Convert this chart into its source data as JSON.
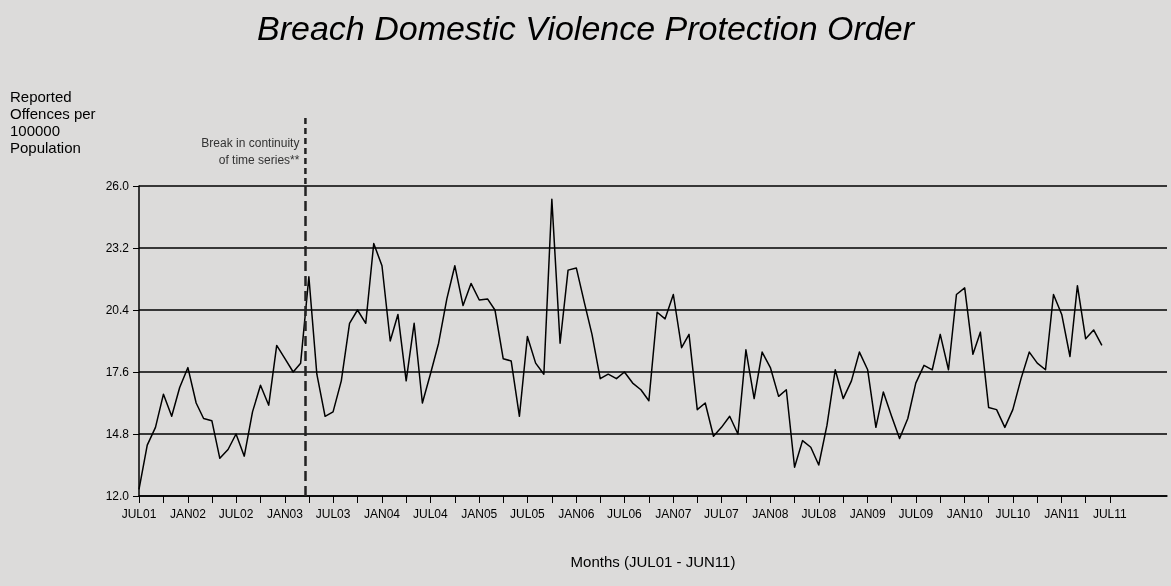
{
  "chart_data": {
    "type": "line",
    "title": "Breach Domestic Violence Protection Order",
    "xlabel": "Months (JUL01 - JUN11)",
    "ylabel": "Reported Offences per 100000 Population",
    "x": [
      "2001-07",
      "2001-08",
      "2001-09",
      "2001-10",
      "2001-11",
      "2001-12",
      "2002-01",
      "2002-02",
      "2002-03",
      "2002-04",
      "2002-05",
      "2002-06",
      "2002-07",
      "2002-08",
      "2002-09",
      "2002-10",
      "2002-11",
      "2002-12",
      "2003-01",
      "2003-02",
      "2003-03",
      "2003-04",
      "2003-05",
      "2003-06",
      "2003-07",
      "2003-08",
      "2003-09",
      "2003-10",
      "2003-11",
      "2003-12",
      "2004-01",
      "2004-02",
      "2004-03",
      "2004-04",
      "2004-05",
      "2004-06",
      "2004-07",
      "2004-08",
      "2004-09",
      "2004-10",
      "2004-11",
      "2004-12",
      "2005-01",
      "2005-02",
      "2005-03",
      "2005-04",
      "2005-05",
      "2005-06",
      "2005-07",
      "2005-08",
      "2005-09",
      "2005-10",
      "2005-11",
      "2005-12",
      "2006-01",
      "2006-02",
      "2006-03",
      "2006-04",
      "2006-05",
      "2006-06",
      "2006-07",
      "2006-08",
      "2006-09",
      "2006-10",
      "2006-11",
      "2006-12",
      "2007-01",
      "2007-02",
      "2007-03",
      "2007-04",
      "2007-05",
      "2007-06",
      "2007-07",
      "2007-08",
      "2007-09",
      "2007-10",
      "2007-11",
      "2007-12",
      "2008-01",
      "2008-02",
      "2008-03",
      "2008-04",
      "2008-05",
      "2008-06",
      "2008-07",
      "2008-08",
      "2008-09",
      "2008-10",
      "2008-11",
      "2008-12",
      "2009-01",
      "2009-02",
      "2009-03",
      "2009-04",
      "2009-05",
      "2009-06",
      "2009-07",
      "2009-08",
      "2009-09",
      "2009-10",
      "2009-11",
      "2009-12",
      "2010-01",
      "2010-02",
      "2010-03",
      "2010-04",
      "2010-05",
      "2010-06",
      "2010-07",
      "2010-08",
      "2010-09",
      "2010-10",
      "2010-11",
      "2010-12",
      "2011-01",
      "2011-02",
      "2011-03",
      "2011-04",
      "2011-05",
      "2011-06"
    ],
    "series": [
      {
        "color": "#000000",
        "values": [
          12.3,
          14.3,
          15.1,
          16.6,
          15.6,
          16.9,
          17.8,
          16.2,
          15.5,
          15.4,
          13.7,
          14.1,
          14.8,
          13.8,
          15.8,
          17.0,
          16.1,
          18.8,
          18.2,
          17.6,
          18.0,
          21.9,
          17.5,
          15.6,
          15.8,
          17.2,
          19.8,
          20.4,
          19.8,
          23.4,
          22.4,
          19.0,
          20.2,
          17.2,
          19.8,
          16.2,
          17.5,
          18.9,
          20.9,
          22.4,
          20.6,
          21.6,
          20.85,
          20.9,
          20.4,
          18.2,
          18.1,
          15.6,
          19.2,
          18.0,
          17.5,
          25.4,
          18.9,
          22.2,
          22.3,
          20.7,
          19.3,
          17.3,
          17.5,
          17.3,
          17.6,
          17.1,
          16.8,
          16.3,
          20.3,
          20.0,
          21.1,
          18.7,
          19.3,
          15.9,
          16.2,
          14.7,
          15.1,
          15.6,
          14.8,
          18.6,
          16.4,
          18.5,
          17.8,
          16.5,
          16.8,
          13.3,
          14.5,
          14.2,
          13.4,
          15.2,
          17.7,
          16.4,
          17.2,
          18.5,
          17.7,
          15.1,
          16.7,
          15.6,
          14.6,
          15.5,
          17.1,
          17.9,
          17.7,
          19.3,
          17.7,
          21.1,
          21.4,
          18.4,
          19.4,
          16.0,
          15.9,
          15.1,
          15.9,
          17.3,
          18.5,
          18.0,
          17.7,
          21.1,
          20.2,
          18.3,
          21.5,
          19.1,
          19.5,
          18.8
        ]
      }
    ],
    "xlim": [
      "2001-07",
      "2012-02"
    ],
    "xticks": [
      {
        "value": "2001-07",
        "label": "JUL01"
      },
      {
        "value": "2001-10",
        "label": null
      },
      {
        "value": "2002-01",
        "label": "JAN02"
      },
      {
        "value": "2002-04",
        "label": null
      },
      {
        "value": "2002-07",
        "label": "JUL02"
      },
      {
        "value": "2002-10",
        "label": null
      },
      {
        "value": "2003-01",
        "label": "JAN03"
      },
      {
        "value": "2003-04",
        "label": null
      },
      {
        "value": "2003-07",
        "label": "JUL03"
      },
      {
        "value": "2003-10",
        "label": null
      },
      {
        "value": "2004-01",
        "label": "JAN04"
      },
      {
        "value": "2004-04",
        "label": null
      },
      {
        "value": "2004-07",
        "label": "JUL04"
      },
      {
        "value": "2004-10",
        "label": null
      },
      {
        "value": "2005-01",
        "label": "JAN05"
      },
      {
        "value": "2005-04",
        "label": null
      },
      {
        "value": "2005-07",
        "label": "JUL05"
      },
      {
        "value": "2005-10",
        "label": null
      },
      {
        "value": "2006-01",
        "label": "JAN06"
      },
      {
        "value": "2006-04",
        "label": null
      },
      {
        "value": "2006-07",
        "label": "JUL06"
      },
      {
        "value": "2006-10",
        "label": null
      },
      {
        "value": "2007-01",
        "label": "JAN07"
      },
      {
        "value": "2007-04",
        "label": null
      },
      {
        "value": "2007-07",
        "label": "JUL07"
      },
      {
        "value": "2007-10",
        "label": null
      },
      {
        "value": "2008-01",
        "label": "JAN08"
      },
      {
        "value": "2008-04",
        "label": null
      },
      {
        "value": "2008-07",
        "label": "JUL08"
      },
      {
        "value": "2008-10",
        "label": null
      },
      {
        "value": "2009-01",
        "label": "JAN09"
      },
      {
        "value": "2009-04",
        "label": null
      },
      {
        "value": "2009-07",
        "label": "JUL09"
      },
      {
        "value": "2009-10",
        "label": null
      },
      {
        "value": "2010-01",
        "label": "JAN10"
      },
      {
        "value": "2010-04",
        "label": null
      },
      {
        "value": "2010-07",
        "label": "JUL10"
      },
      {
        "value": "2010-10",
        "label": null
      },
      {
        "value": "2011-01",
        "label": "JAN11"
      },
      {
        "value": "2011-04",
        "label": null
      },
      {
        "value": "2011-07",
        "label": "JUL11"
      }
    ],
    "ylim": [
      12,
      26
    ],
    "yticks": [
      {
        "value": 12,
        "label": "12.0"
      },
      {
        "value": 14.8,
        "label": "14.8"
      },
      {
        "value": 17.6,
        "label": "17.6"
      },
      {
        "value": 20.4,
        "label": "20.4"
      },
      {
        "value": 23.2,
        "label": "23.2"
      },
      {
        "value": 26,
        "label": "26.0"
      }
    ],
    "grid": "y",
    "marker": "none",
    "line_style": "solid",
    "ref_lines": [
      {
        "axis": "x",
        "value": "2003-03-19",
        "label": "Break in continuity of time series**",
        "color": "#222222",
        "line_style": "dashed"
      }
    ]
  }
}
